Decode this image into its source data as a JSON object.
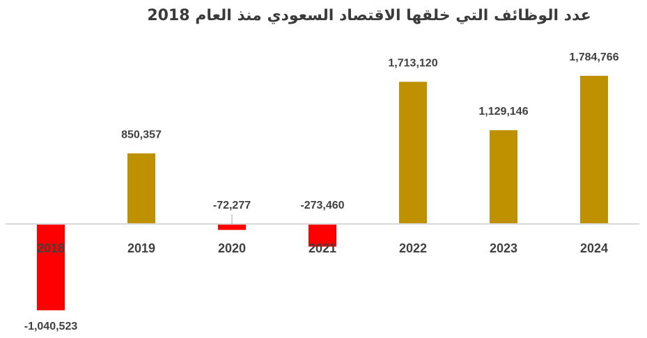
{
  "chart_data": {
    "type": "bar",
    "title": "عدد الوظائف التي خلقها الاقتصاد السعودي منذ العام 2018",
    "categories": [
      "2018",
      "2019",
      "2020",
      "2021",
      "2022",
      "2023",
      "2024"
    ],
    "values": [
      -1040523,
      850357,
      -72277,
      -273460,
      1713120,
      1129146,
      1784766
    ],
    "value_labels": [
      "-1,040,523",
      "850,357",
      "-72,277",
      "-273,460",
      "1,713,120",
      "1,129,146",
      "1,784,766"
    ],
    "colors": {
      "positive": "#BF9000",
      "negative": "#FF0000",
      "axis": "#D9D9D9"
    },
    "legend": "none",
    "grid": false
  }
}
